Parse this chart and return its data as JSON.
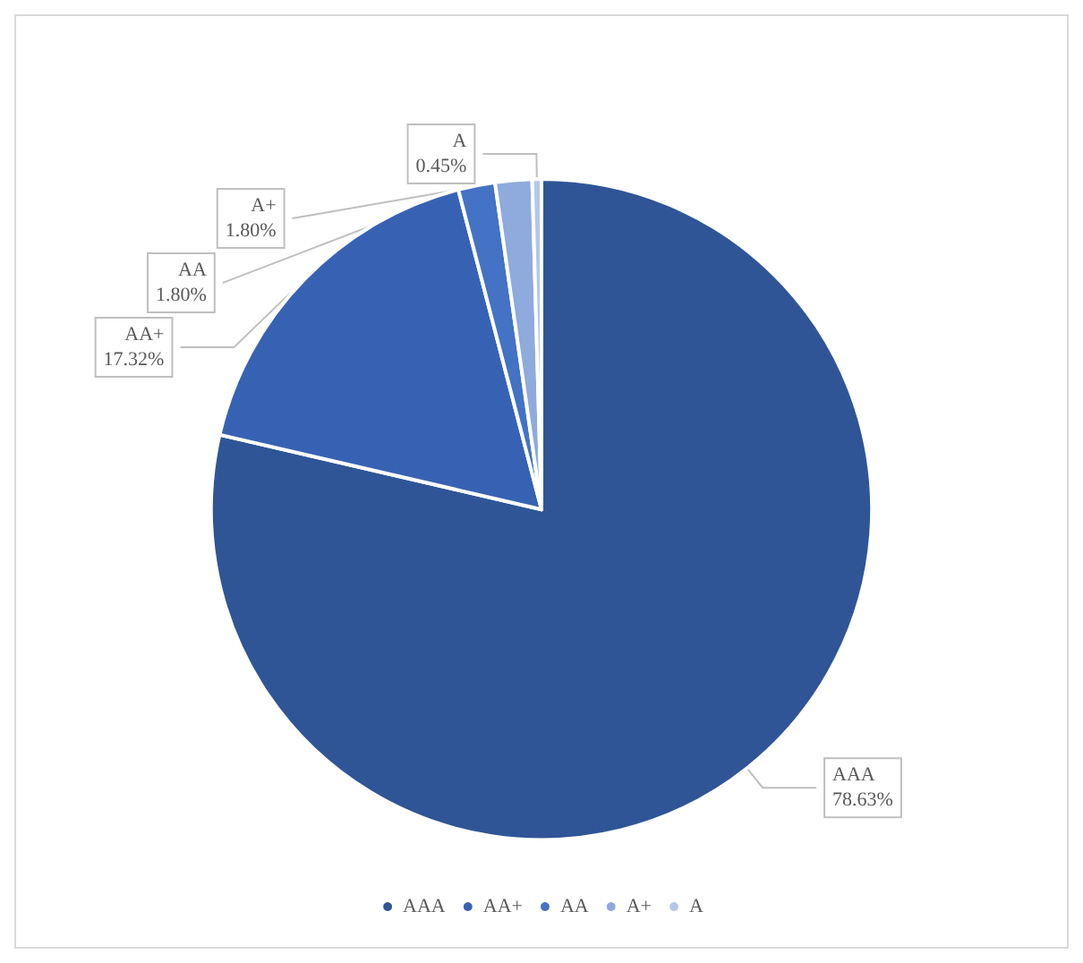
{
  "chart_data": {
    "type": "pie",
    "categories": [
      "AAA",
      "AA+",
      "AA",
      "A+",
      "A"
    ],
    "values": [
      78.63,
      17.32,
      1.8,
      1.8,
      0.45
    ],
    "value_labels": [
      "78.63%",
      "17.32%",
      "1.80%",
      "1.80%",
      "0.45%"
    ],
    "colors": [
      "#2f5597",
      "#3762b4",
      "#4472c4",
      "#8faadc",
      "#b4c7e7"
    ],
    "legend": "bottom"
  }
}
